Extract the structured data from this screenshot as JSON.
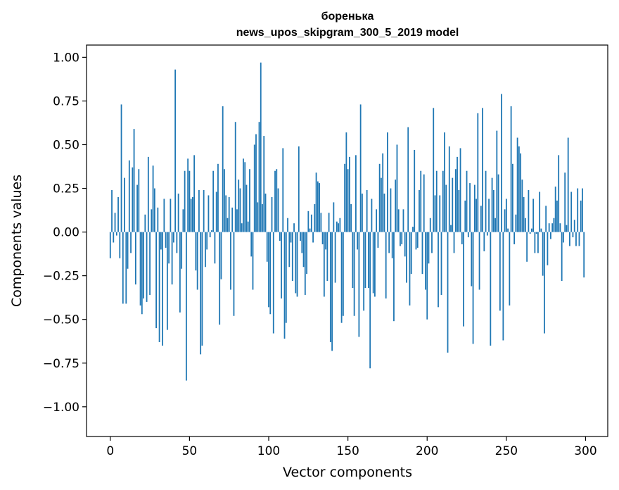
{
  "chart_data": {
    "type": "bar",
    "title_line1": "боренька",
    "title_line2": "news_upos_skipgram_300_5_2019 model",
    "xlabel": "Vector components",
    "ylabel": "Components values",
    "xlim": [
      -15,
      314
    ],
    "ylim": [
      -1.17,
      1.07
    ],
    "x_ticks": [
      0,
      50,
      100,
      150,
      200,
      250,
      300
    ],
    "x_tick_labels": [
      "0",
      "50",
      "100",
      "150",
      "200",
      "250",
      "300"
    ],
    "y_ticks": [
      1.0,
      0.75,
      0.5,
      0.25,
      0.0,
      -0.25,
      -0.5,
      -0.75,
      -1.0
    ],
    "y_tick_labels": [
      "1.00",
      "0.75",
      "0.50",
      "0.25",
      "0.00",
      "−0.25",
      "−0.50",
      "−0.75",
      "−1.00"
    ],
    "bar_color": "#1f77b4",
    "values": [
      -0.15,
      0.24,
      -0.06,
      0.11,
      -0.02,
      0.2,
      -0.15,
      0.73,
      -0.41,
      0.31,
      -0.41,
      -0.21,
      0.41,
      -0.12,
      0.37,
      0.59,
      -0.3,
      0.27,
      0.36,
      -0.42,
      -0.47,
      -0.38,
      0.1,
      -0.4,
      0.43,
      -0.36,
      0.13,
      0.38,
      0.25,
      -0.55,
      0.14,
      -0.63,
      -0.1,
      -0.65,
      0.19,
      -0.09,
      -0.56,
      -0.18,
      0.19,
      -0.3,
      -0.06,
      0.93,
      -0.12,
      0.22,
      -0.46,
      -0.21,
      0.13,
      0.35,
      -0.85,
      0.42,
      0.35,
      0.19,
      0.2,
      0.44,
      -0.22,
      -0.33,
      0.24,
      -0.7,
      -0.65,
      0.24,
      -0.2,
      -0.1,
      0.21,
      -0.03,
      0.01,
      0.35,
      -0.18,
      0.23,
      0.39,
      -0.53,
      -0.27,
      0.72,
      0.36,
      0.21,
      0.08,
      0.2,
      -0.33,
      0.14,
      -0.48,
      0.63,
      0.13,
      0.3,
      0.25,
      0.05,
      0.42,
      0.4,
      0.27,
      0.06,
      0.36,
      -0.14,
      -0.33,
      0.5,
      0.56,
      0.17,
      0.63,
      0.97,
      0.16,
      0.55,
      0.22,
      -0.17,
      -0.43,
      -0.47,
      0.2,
      -0.58,
      0.35,
      0.36,
      0.25,
      -0.05,
      -0.38,
      0.48,
      -0.61,
      -0.52,
      0.08,
      -0.2,
      -0.06,
      -0.28,
      0.05,
      -0.35,
      -0.37,
      0.49,
      -0.05,
      -0.12,
      -0.2,
      -0.36,
      -0.24,
      0.12,
      0.02,
      0.1,
      -0.06,
      0.16,
      0.34,
      0.29,
      0.28,
      0.11,
      -0.07,
      -0.37,
      -0.1,
      -0.28,
      0.11,
      -0.63,
      -0.68,
      0.17,
      -0.29,
      0.06,
      0.05,
      0.08,
      -0.52,
      -0.48,
      0.39,
      0.57,
      0.36,
      0.43,
      0.16,
      -0.32,
      -0.48,
      0.44,
      -0.1,
      -0.6,
      0.73,
      0.22,
      -0.45,
      -0.32,
      0.24,
      -0.32,
      -0.78,
      0.19,
      -0.35,
      -0.37,
      0.13,
      -0.09,
      0.39,
      0.31,
      0.45,
      0.22,
      -0.38,
      0.57,
      -0.12,
      0.25,
      -0.15,
      -0.51,
      0.3,
      0.5,
      0.13,
      -0.08,
      -0.07,
      0.13,
      -0.14,
      -0.29,
      0.6,
      -0.42,
      -0.24,
      0.03,
      0.47,
      -0.1,
      -0.09,
      0.24,
      0.35,
      -0.24,
      0.33,
      -0.33,
      -0.5,
      -0.18,
      0.08,
      -0.12,
      0.71,
      0.21,
      0.35,
      -0.43,
      0.21,
      -0.36,
      0.35,
      0.57,
      0.27,
      -0.69,
      0.49,
      0.04,
      0.31,
      -0.12,
      0.36,
      0.43,
      0.24,
      0.48,
      -0.07,
      -0.54,
      0.18,
      0.35,
      -0.03,
      0.28,
      -0.31,
      -0.64,
      0.27,
      0.19,
      0.68,
      -0.33,
      0.15,
      0.71,
      -0.11,
      0.35,
      -0.02,
      0.19,
      -0.65,
      0.31,
      0.24,
      0.08,
      0.58,
      0.33,
      -0.45,
      0.79,
      -0.62,
      0.13,
      0.19,
      0.02,
      -0.42,
      0.72,
      0.39,
      -0.07,
      0.1,
      0.54,
      0.49,
      0.45,
      0.3,
      0.2,
      0.08,
      -0.17,
      0.24,
      -0.01,
      0.02,
      0.19,
      -0.12,
      -0.01,
      -0.12,
      0.23,
      0.02,
      -0.25,
      -0.58,
      0.15,
      -0.19,
      0.05,
      -0.04,
      0.05,
      0.08,
      0.26,
      0.18,
      0.44,
      0.05,
      -0.28,
      -0.06,
      0.34,
      0.04,
      0.54,
      -0.08,
      0.23,
      -0.03,
      0.07,
      -0.08,
      0.25,
      -0.08,
      0.18,
      0.25,
      -0.26
    ]
  }
}
